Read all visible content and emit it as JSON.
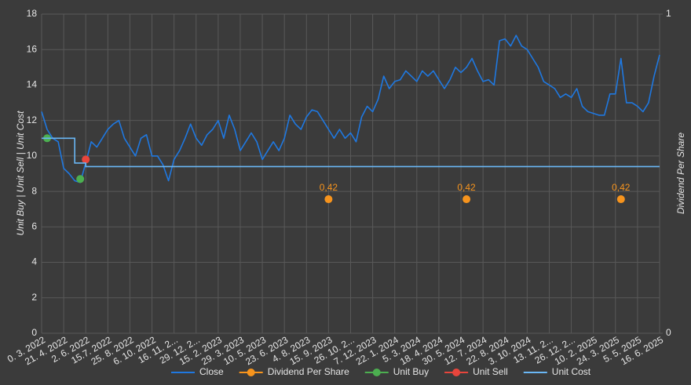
{
  "chart_data": {
    "type": "line",
    "ylabel": "Unit Buy | Unit Sell | Unit Cost",
    "y2label": "Dividend Per Share",
    "ylim": [
      0,
      18
    ],
    "yticks": [
      0,
      2,
      4,
      6,
      8,
      10,
      12,
      14,
      16,
      18
    ],
    "y2lim": [
      0,
      1
    ],
    "y2ticks": [
      0,
      1
    ],
    "grid": true,
    "legend": "bottom",
    "categories": [
      "0. 3. 2022",
      null,
      null,
      null,
      "21. 4. 2022",
      null,
      null,
      null,
      "2. 6. 2022",
      null,
      null,
      null,
      "15.7. 2022",
      null,
      null,
      null,
      "25. 8. 2022",
      null,
      null,
      null,
      "6. 10. 2022",
      null,
      null,
      null,
      "16. 11. 2...",
      null,
      null,
      null,
      "29. 12. 2...",
      null,
      null,
      null,
      "15. 2. 2023",
      null,
      null,
      null,
      "29. 3. 2023",
      null,
      null,
      null,
      "10. 5. 2023",
      null,
      null,
      null,
      "23. 6. 2023",
      null,
      null,
      null,
      "4. 8. 2023",
      null,
      null,
      null,
      "15. 9. 2023",
      null,
      null,
      null,
      "26. 10. 2...",
      null,
      null,
      null,
      "7. 12. 2023",
      null,
      null,
      null,
      "22. 1. 2024",
      null,
      null,
      null,
      "5. 3. 2024",
      null,
      null,
      null,
      "18. 4. 2024",
      null,
      null,
      null,
      "30. 5. 2024",
      null,
      null,
      null,
      "12. 7. 2024",
      null,
      null,
      null,
      "22. 8. 2024",
      null,
      null,
      null,
      "3. 10. 2024",
      null,
      null,
      null,
      "13. 11. 2...",
      null,
      null,
      null,
      "26. 12. 2...",
      null,
      null,
      null,
      "10. 2. 2025",
      null,
      null,
      null,
      "24. 3. 2025",
      null,
      null,
      null,
      "5. 5. 2025",
      null,
      null,
      null,
      "16. 6. 2025"
    ],
    "series": [
      {
        "name": "Close",
        "color": "#1f78e0",
        "mode": "line",
        "axis": "y",
        "values": [
          12.5,
          11.5,
          11,
          10.8,
          9.3,
          9.0,
          8.6,
          8.5,
          9.6,
          10.8,
          10.5,
          11.0,
          11.5,
          11.8,
          12.0,
          11.0,
          10.5,
          10.0,
          11.0,
          11.2,
          10.0,
          10.0,
          9.5,
          8.6,
          9.8,
          10.3,
          11.0,
          11.8,
          11.0,
          10.6,
          11.2,
          11.5,
          12.0,
          11.0,
          12.3,
          11.5,
          10.3,
          10.8,
          11.3,
          10.8,
          9.8,
          10.3,
          10.8,
          10.3,
          11.0,
          12.3,
          11.8,
          11.5,
          12.2,
          12.6,
          12.5,
          12.0,
          11.5,
          11.0,
          11.5,
          11.0,
          11.3,
          10.8,
          12.2,
          12.8,
          12.5,
          13.2,
          14.5,
          13.8,
          14.2,
          14.3,
          14.8,
          14.5,
          14.2,
          14.8,
          14.5,
          14.8,
          14.3,
          13.8,
          14.3,
          15.0,
          14.7,
          15.0,
          15.5,
          14.8,
          14.2,
          14.3,
          14.0,
          16.5,
          16.6,
          16.2,
          16.8,
          16.2,
          16.0,
          15.5,
          15.0,
          14.2,
          14.0,
          13.8,
          13.3,
          13.5,
          13.3,
          13.8,
          12.8,
          12.5,
          12.4,
          12.3,
          12.3,
          13.5,
          13.5,
          15.5,
          13.0,
          13.0,
          12.8,
          12.5,
          13.0,
          14.5,
          15.7
        ]
      },
      {
        "name": "Dividend Per Share",
        "color": "#f7941d",
        "mode": "markers",
        "axis": "y2",
        "values": [
          null,
          null,
          null,
          null,
          null,
          null,
          null,
          null,
          null,
          null,
          null,
          null,
          null,
          null,
          null,
          null,
          null,
          null,
          null,
          null,
          null,
          null,
          null,
          null,
          null,
          null,
          null,
          null,
          null,
          null,
          null,
          null,
          null,
          null,
          null,
          null,
          null,
          null,
          null,
          null,
          null,
          null,
          null,
          null,
          null,
          null,
          null,
          null,
          null,
          null,
          null,
          null,
          0.42,
          null,
          null,
          null,
          null,
          null,
          null,
          null,
          null,
          null,
          null,
          null,
          null,
          null,
          null,
          null,
          null,
          null,
          null,
          null,
          null,
          null,
          null,
          null,
          null,
          0.42,
          null,
          null,
          null,
          null,
          null,
          null,
          null,
          null,
          null,
          null,
          null,
          null,
          null,
          null,
          null,
          null,
          null,
          null,
          null,
          null,
          null,
          null,
          null,
          null,
          null,
          null,
          null,
          0.42,
          null,
          null,
          null,
          null,
          null,
          null,
          null
        ],
        "value_labels": [
          null,
          null,
          null,
          null,
          null,
          null,
          null,
          null,
          null,
          null,
          null,
          null,
          null,
          null,
          null,
          null,
          null,
          null,
          null,
          null,
          null,
          null,
          null,
          null,
          null,
          null,
          null,
          null,
          null,
          null,
          null,
          null,
          null,
          null,
          null,
          null,
          null,
          null,
          null,
          null,
          null,
          null,
          null,
          null,
          null,
          null,
          null,
          null,
          null,
          null,
          null,
          null,
          "0,42",
          null,
          null,
          null,
          null,
          null,
          null,
          null,
          null,
          null,
          null,
          null,
          null,
          null,
          null,
          null,
          null,
          null,
          null,
          null,
          null,
          null,
          null,
          null,
          null,
          "0,42",
          null,
          null,
          null,
          null,
          null,
          null,
          null,
          null,
          null,
          null,
          null,
          null,
          null,
          null,
          null,
          null,
          null,
          null,
          null,
          null,
          null,
          null,
          null,
          null,
          null,
          null,
          null,
          "0,42",
          null,
          null,
          null,
          null,
          null,
          null,
          null
        ]
      },
      {
        "name": "Unit Buy",
        "color": "#4caf50",
        "mode": "markers",
        "axis": "y",
        "values": [
          null,
          11.0,
          null,
          null,
          null,
          null,
          null,
          8.7,
          null,
          null,
          null,
          null,
          null,
          null,
          null,
          null,
          null,
          null,
          null,
          null,
          null,
          null,
          null,
          null,
          null,
          null,
          null,
          null,
          null,
          null,
          null,
          null,
          null,
          null,
          null,
          null,
          null,
          null,
          null,
          null,
          null,
          null,
          null,
          null,
          null,
          null,
          null,
          null,
          null,
          null,
          null,
          null,
          null,
          null,
          null,
          null,
          null,
          null,
          null,
          null,
          null,
          null,
          null,
          null,
          null,
          null,
          null,
          null,
          null,
          null,
          null,
          null,
          null,
          null,
          null,
          null,
          null,
          null,
          null,
          null,
          null,
          null,
          null,
          null,
          null,
          null,
          null,
          null,
          null,
          null,
          null,
          null,
          null,
          null,
          null,
          null,
          null,
          null,
          null,
          null,
          null,
          null,
          null,
          null,
          null,
          null,
          null,
          null,
          null,
          null,
          null,
          null,
          null
        ]
      },
      {
        "name": "Unit Sell",
        "color": "#e8453c",
        "mode": "markers",
        "axis": "y",
        "values": [
          null,
          null,
          null,
          null,
          null,
          null,
          null,
          null,
          9.8,
          null,
          null,
          null,
          null,
          null,
          null,
          null,
          null,
          null,
          null,
          null,
          null,
          null,
          null,
          null,
          null,
          null,
          null,
          null,
          null,
          null,
          null,
          null,
          null,
          null,
          null,
          null,
          null,
          null,
          null,
          null,
          null,
          null,
          null,
          null,
          null,
          null,
          null,
          null,
          null,
          null,
          null,
          null,
          null,
          null,
          null,
          null,
          null,
          null,
          null,
          null,
          null,
          null,
          null,
          null,
          null,
          null,
          null,
          null,
          null,
          null,
          null,
          null,
          null,
          null,
          null,
          null,
          null,
          null,
          null,
          null,
          null,
          null,
          null,
          null,
          null,
          null,
          null,
          null,
          null,
          null,
          null,
          null,
          null,
          null,
          null,
          null,
          null,
          null,
          null,
          null,
          null,
          null,
          null,
          null,
          null,
          null,
          null,
          null,
          null,
          null,
          null,
          null,
          null
        ]
      },
      {
        "name": "Unit Cost",
        "color": "#6ab7f5",
        "mode": "step",
        "axis": "y",
        "values": [
          11.0,
          11.0,
          11.0,
          11.0,
          11.0,
          11.0,
          9.6,
          9.6,
          9.4,
          9.4,
          9.4,
          9.4,
          9.4,
          9.4,
          9.4,
          9.4,
          9.4,
          9.4,
          9.4,
          9.4,
          9.4,
          9.4,
          9.4,
          9.4,
          9.4,
          9.4,
          9.4,
          9.4,
          9.4,
          9.4,
          9.4,
          9.4,
          9.4,
          9.4,
          9.4,
          9.4,
          9.4,
          9.4,
          9.4,
          9.4,
          9.4,
          9.4,
          9.4,
          9.4,
          9.4,
          9.4,
          9.4,
          9.4,
          9.4,
          9.4,
          9.4,
          9.4,
          9.4,
          9.4,
          9.4,
          9.4,
          9.4,
          9.4,
          9.4,
          9.4,
          9.4,
          9.4,
          9.4,
          9.4,
          9.4,
          9.4,
          9.4,
          9.4,
          9.4,
          9.4,
          9.4,
          9.4,
          9.4,
          9.4,
          9.4,
          9.4,
          9.4,
          9.4,
          9.4,
          9.4,
          9.4,
          9.4,
          9.4,
          9.4,
          9.4,
          9.4,
          9.4,
          9.4,
          9.4,
          9.4,
          9.4,
          9.4,
          9.4,
          9.4,
          9.4,
          9.4,
          9.4,
          9.4,
          9.4,
          9.4,
          9.4,
          9.4,
          9.4,
          9.4,
          9.4,
          9.4,
          9.4,
          9.4,
          9.4,
          9.4,
          9.4,
          9.4,
          9.4
        ]
      }
    ]
  }
}
